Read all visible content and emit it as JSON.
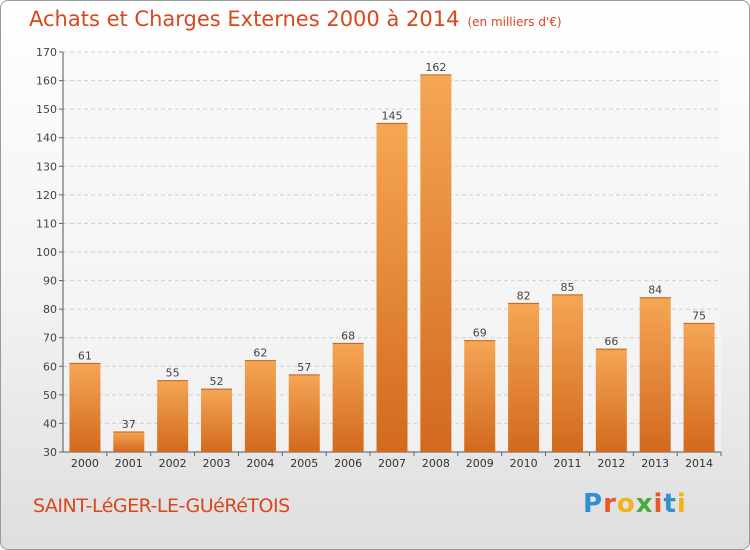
{
  "header": {
    "title": "Achats et Charges Externes 2000 à 2014",
    "subtitle": "(en milliers d'€)"
  },
  "footer": {
    "location": "SAINT-LéGER-LE-GUéRéTOIS",
    "brand": [
      "P",
      "r",
      "o",
      "x",
      "i",
      "t",
      "i"
    ],
    "brand_colors": [
      "#2f8fd1",
      "#e8562a",
      "#f2b21a",
      "#4caa3c",
      "#e8562a",
      "#2f8fd1",
      "#f2b21a"
    ]
  },
  "chart_data": {
    "type": "bar",
    "categories": [
      "2000",
      "2001",
      "2002",
      "2003",
      "2004",
      "2005",
      "2006",
      "2007",
      "2008",
      "2009",
      "2010",
      "2011",
      "2012",
      "2013",
      "2014"
    ],
    "values": [
      61,
      37,
      55,
      52,
      62,
      57,
      68,
      145,
      162,
      69,
      82,
      85,
      66,
      84,
      75
    ],
    "ylim": [
      30,
      170
    ],
    "yticks": [
      30,
      40,
      50,
      60,
      70,
      80,
      90,
      100,
      110,
      120,
      130,
      140,
      150,
      160,
      170
    ],
    "grid": true,
    "bar_color_top": "#f5a655",
    "bar_color_bottom": "#d2691e",
    "label_color": "#444444"
  }
}
